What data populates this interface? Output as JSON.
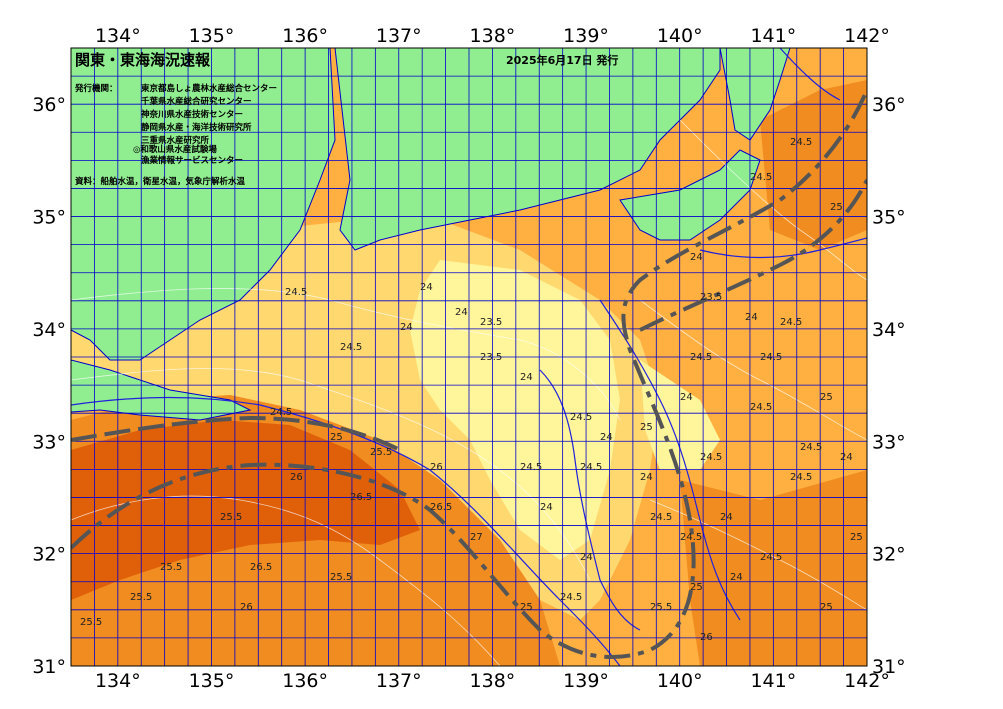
{
  "title": "関東・東海海況速報",
  "issued": "2025年6月17日 発行",
  "organizations": {
    "heading": "発行機関：",
    "list": [
      "東京都島しょ農林水産総合センター",
      "千葉県水産総合研究センター",
      "神奈川県水産技術センター",
      "静岡県水産・海洋技術研究所",
      "三重県水産研究所",
      "◎和歌山県水産試験場",
      "漁業情報サービスセンター"
    ],
    "sources": "資料：船舶水温，衛星水温，気象庁解析水温"
  },
  "axes": {
    "lon_ticks": [
      "134°",
      "135°",
      "136°",
      "137°",
      "138°",
      "139°",
      "140°",
      "141°",
      "142°"
    ],
    "lat_ticks": [
      "36°",
      "35°",
      "34°",
      "33°",
      "32°",
      "31°"
    ],
    "lon_range": [
      133.5,
      142.0
    ],
    "lat_range": [
      31.0,
      36.5
    ]
  },
  "contour_labels": [
    "24.5",
    "24.5",
    "24",
    "24",
    "24",
    "23.5",
    "23.5",
    "24",
    "24.5",
    "25",
    "25.5",
    "26",
    "26.5",
    "27",
    "26.5",
    "26",
    "25.5",
    "25.5",
    "25.5",
    "25.5",
    "26",
    "26.5",
    "25.5",
    "25",
    "24.5",
    "24",
    "24.5",
    "24",
    "24.5",
    "24",
    "24.5",
    "24",
    "24.5",
    "24.5",
    "25",
    "25.5",
    "26",
    "24.5",
    "24",
    "23.5",
    "24",
    "24.5",
    "24.5",
    "25",
    "24.5",
    "24",
    "24.5",
    "24.5",
    "24",
    "24.5",
    "24.5",
    "24",
    "24",
    "24.5",
    "25",
    "24.5",
    "25",
    "25",
    "25"
  ],
  "colors": {
    "land": "#90ee90",
    "grid": "#0000cc",
    "kuroshio": "#555555",
    "sst_23": "#fff59a",
    "sst_24": "#ffd870",
    "sst_25": "#ffb040",
    "sst_26": "#f08c20",
    "sst_27": "#e0600a"
  }
}
